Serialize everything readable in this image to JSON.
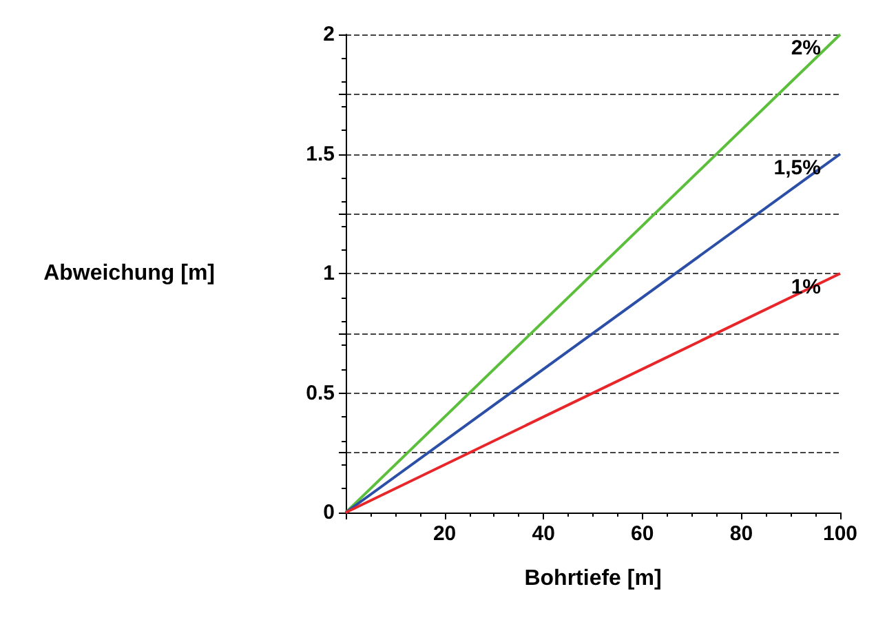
{
  "chart_data": {
    "type": "line",
    "xlabel": "Bohrtiefe [m]",
    "ylabel": "Abweichung [m]",
    "x": [
      0,
      100
    ],
    "series": [
      {
        "name": "2%",
        "color": "#5cbf3c",
        "values": [
          0,
          2
        ]
      },
      {
        "name": "1,5%",
        "color": "#2b4ea6",
        "values": [
          0,
          1.5
        ]
      },
      {
        "name": "1%",
        "color": "#e8262a",
        "values": [
          0,
          1
        ]
      }
    ],
    "xlim": [
      0,
      100
    ],
    "xticks": [
      {
        "value": 0,
        "label": null
      },
      20,
      40,
      60,
      80,
      100
    ],
    "ylim": [
      0,
      2
    ],
    "yticks": [
      0,
      {
        "value": 0.25,
        "label": null
      },
      0.5,
      {
        "value": 0.75,
        "label": null
      },
      1,
      {
        "value": 1.25,
        "label": null
      },
      1.5,
      {
        "value": 1.75,
        "label": null
      },
      2
    ],
    "grid": "y",
    "legend": false,
    "marker": "none",
    "line_style": "solid"
  }
}
